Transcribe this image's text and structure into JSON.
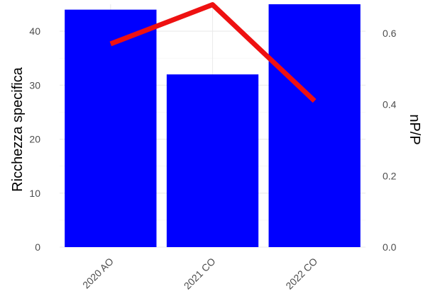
{
  "chart_data": {
    "type": "bar",
    "categories": [
      "2020 AO",
      "2021 CO",
      "2022 CO"
    ],
    "series": [
      {
        "type": "bar",
        "axis": "left",
        "values": [
          44,
          32,
          45
        ]
      },
      {
        "type": "line",
        "axis": "right",
        "values": [
          0.57,
          0.68,
          0.41
        ]
      }
    ],
    "ylabel": "Ricchezza specifica",
    "y2label": "nP/P",
    "ylim": [
      0,
      45
    ],
    "y2lim": [
      0,
      0.6811
    ],
    "yticks": [
      "0",
      "10",
      "20",
      "30",
      "40"
    ],
    "y2ticks": [
      "0.0",
      "0.2",
      "0.4",
      "0.6"
    ],
    "grid": true,
    "colors": {
      "bar": "#0000ff",
      "line": "#ee1111"
    }
  }
}
